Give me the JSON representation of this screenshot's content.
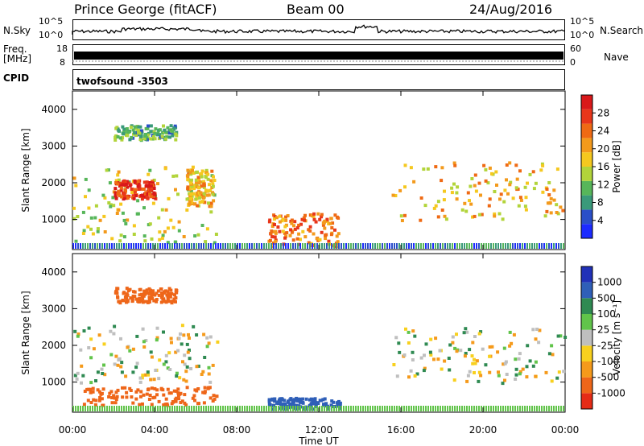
{
  "header": {
    "site": "Prince George (fitACF)",
    "beam": "Beam 00",
    "date": "24/Aug/2016"
  },
  "left_labels": {
    "nsky": "N.Sky",
    "freq": "Freq.",
    "mhz": "[MHz]",
    "cpid": "CPID"
  },
  "right_labels": {
    "nsearch": "N.Search",
    "nave": "Nave"
  },
  "nsky_axis": {
    "top": "10^5",
    "bottom": "10^0"
  },
  "nsearch_axis": {
    "top": "10^5",
    "bottom": "10^0"
  },
  "freq_axis": {
    "top": "18",
    "bottom": "8"
  },
  "nave_axis": {
    "top": "60",
    "bottom": "0"
  },
  "cpid_text": "twofsound -3503",
  "colors": {
    "power": [
      "#1c2bff",
      "#2a4fc8",
      "#3a9a7a",
      "#57b65a",
      "#b2d43a",
      "#f5c81f",
      "#f39a1c",
      "#ef6a14",
      "#e8361a",
      "#d9181a"
    ],
    "velocity_pos": [
      "#2131b8",
      "#2f5fb8",
      "#2f8a52",
      "#61c44a"
    ],
    "velocity_grey": "#bfbfbf",
    "velocity_neg": [
      "#f8d01e",
      "#f59a1b",
      "#ee6619",
      "#e52b16"
    ]
  },
  "chart_data": [
    {
      "type": "heatmap",
      "name": "power",
      "xlabel": "",
      "ylabel": "Slant Range [km]",
      "xlim": [
        "00:00",
        "24:00"
      ],
      "ylim": [
        180,
        4500
      ],
      "yticks": [
        "1000",
        "2000",
        "3000",
        "4000"
      ],
      "colorbar": {
        "label": "Power [dB]",
        "ticks": [
          "4",
          "8",
          "12",
          "16",
          "20",
          "24",
          "28"
        ],
        "range": [
          0,
          30
        ]
      },
      "regions": [
        {
          "t0": 0.0,
          "t1": 7.0,
          "r0": 400,
          "r1": 2500,
          "value": 14
        },
        {
          "t0": 2.0,
          "t1": 4.0,
          "r0": 1600,
          "r1": 2100,
          "value": 26
        },
        {
          "t0": 5.5,
          "t1": 6.8,
          "r0": 1400,
          "r1": 2400,
          "value": 18
        },
        {
          "t0": 9.5,
          "t1": 13.0,
          "r0": 300,
          "r1": 1200,
          "value": 22
        },
        {
          "t0": 2.0,
          "t1": 5.0,
          "r0": 3200,
          "r1": 3600,
          "value": 10
        },
        {
          "t0": 15.5,
          "t1": 24.0,
          "r0": 1000,
          "r1": 2600,
          "value": 18
        }
      ]
    },
    {
      "type": "heatmap",
      "name": "velocity",
      "xlabel": "Time UT",
      "ylabel": "Slant Range [km]",
      "xlim": [
        "00:00",
        "24:00"
      ],
      "ylim": [
        180,
        4500
      ],
      "xticks": [
        "00:00",
        "04:00",
        "08:00",
        "12:00",
        "16:00",
        "20:00",
        "00:00"
      ],
      "yticks": [
        "1000",
        "2000",
        "3000",
        "4000"
      ],
      "colorbar": {
        "label": "Velocity [m s⁻¹]",
        "ticks": [
          "1000",
          "500",
          "100",
          "25",
          "-25",
          "-100",
          "-500",
          "-1000"
        ],
        "range": [
          -1000,
          1000
        ]
      },
      "regions": [
        {
          "t0": 0.0,
          "t1": 7.0,
          "r0": 1000,
          "r1": 2600,
          "value": 0
        },
        {
          "t0": 0.5,
          "t1": 7.0,
          "r0": 400,
          "r1": 900,
          "value": -300
        },
        {
          "t0": 9.5,
          "t1": 13.0,
          "r0": 300,
          "r1": 600,
          "value": 300
        },
        {
          "t0": 2.0,
          "t1": 5.0,
          "r0": 3200,
          "r1": 3600,
          "value": -300
        },
        {
          "t0": 15.5,
          "t1": 24.0,
          "r0": 1000,
          "r1": 2500,
          "value": 0
        }
      ]
    }
  ]
}
